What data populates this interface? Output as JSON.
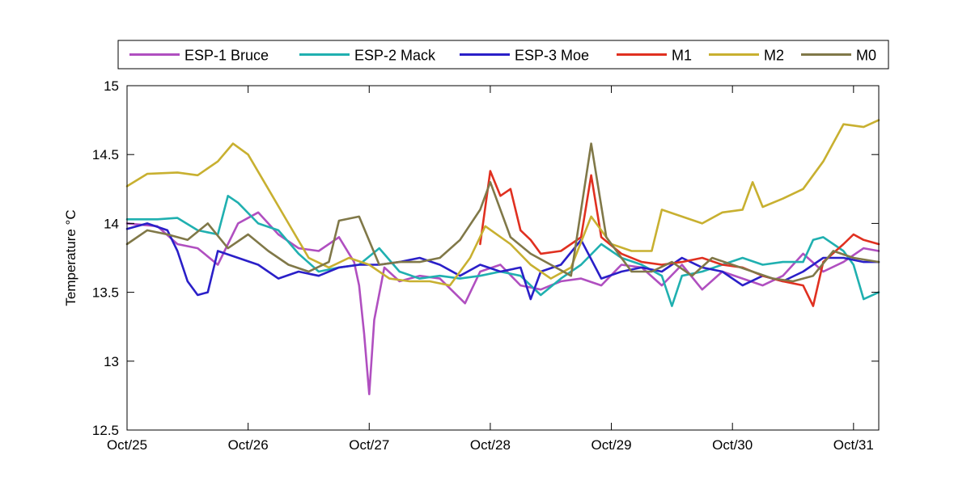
{
  "chart_data": {
    "type": "line",
    "title": "",
    "xlabel": "",
    "ylabel": "Temperature °C",
    "x_ticks": [
      "Oct/25",
      "Oct/26",
      "Oct/27",
      "Oct/28",
      "Oct/29",
      "Oct/30",
      "Oct/31"
    ],
    "xlim": [
      "Oct/25",
      "Oct/31 05:00"
    ],
    "ylim": [
      12.5,
      15
    ],
    "y_ticks": [
      "12.5",
      "13",
      "13.5",
      "14",
      "14.5",
      "15"
    ],
    "grid": false,
    "legend_position": "top",
    "series": [
      {
        "name": "ESP-1 Bruce",
        "color": "#b04fc0",
        "points": [
          [
            "Oct/25 00:00",
            14.0
          ],
          [
            "Oct/25 06:00",
            13.98
          ],
          [
            "Oct/25 10:00",
            13.85
          ],
          [
            "Oct/25 14:00",
            13.82
          ],
          [
            "Oct/25 18:00",
            13.7
          ],
          [
            "Oct/25 22:00",
            14.0
          ],
          [
            "Oct/26 02:00",
            14.08
          ],
          [
            "Oct/26 06:00",
            13.92
          ],
          [
            "Oct/26 10:00",
            13.82
          ],
          [
            "Oct/26 14:00",
            13.8
          ],
          [
            "Oct/26 18:00",
            13.9
          ],
          [
            "Oct/26 21:00",
            13.72
          ],
          [
            "Oct/26 22:00",
            13.55
          ],
          [
            "Oct/26 23:00",
            13.2
          ],
          [
            "Oct/27 00:00",
            12.76
          ],
          [
            "Oct/27 01:00",
            13.3
          ],
          [
            "Oct/27 03:00",
            13.68
          ],
          [
            "Oct/27 06:00",
            13.58
          ],
          [
            "Oct/27 10:00",
            13.62
          ],
          [
            "Oct/27 14:00",
            13.6
          ],
          [
            "Oct/27 19:00",
            13.42
          ],
          [
            "Oct/27 22:00",
            13.65
          ],
          [
            "Oct/28 02:00",
            13.7
          ],
          [
            "Oct/28 06:00",
            13.55
          ],
          [
            "Oct/28 10:00",
            13.52
          ],
          [
            "Oct/28 14:00",
            13.58
          ],
          [
            "Oct/28 18:00",
            13.6
          ],
          [
            "Oct/28 22:00",
            13.55
          ],
          [
            "Oct/29 02:00",
            13.7
          ],
          [
            "Oct/29 06:00",
            13.68
          ],
          [
            "Oct/29 10:00",
            13.55
          ],
          [
            "Oct/29 14:00",
            13.7
          ],
          [
            "Oct/29 18:00",
            13.52
          ],
          [
            "Oct/29 22:00",
            13.65
          ],
          [
            "Oct/30 02:00",
            13.6
          ],
          [
            "Oct/30 06:00",
            13.55
          ],
          [
            "Oct/30 10:00",
            13.62
          ],
          [
            "Oct/30 14:00",
            13.78
          ],
          [
            "Oct/30 18:00",
            13.65
          ],
          [
            "Oct/30 22:00",
            13.72
          ],
          [
            "Oct/31 02:00",
            13.82
          ],
          [
            "Oct/31 05:00",
            13.8
          ]
        ]
      },
      {
        "name": "ESP-2 Mack",
        "color": "#20b0b0",
        "points": [
          [
            "Oct/25 00:00",
            14.03
          ],
          [
            "Oct/25 06:00",
            14.03
          ],
          [
            "Oct/25 10:00",
            14.04
          ],
          [
            "Oct/25 14:00",
            13.95
          ],
          [
            "Oct/25 18:00",
            13.92
          ],
          [
            "Oct/25 20:00",
            14.2
          ],
          [
            "Oct/25 22:00",
            14.15
          ],
          [
            "Oct/26 02:00",
            14.0
          ],
          [
            "Oct/26 06:00",
            13.95
          ],
          [
            "Oct/26 10:00",
            13.78
          ],
          [
            "Oct/26 14:00",
            13.65
          ],
          [
            "Oct/26 18:00",
            13.68
          ],
          [
            "Oct/26 22:00",
            13.7
          ],
          [
            "Oct/27 02:00",
            13.82
          ],
          [
            "Oct/27 06:00",
            13.65
          ],
          [
            "Oct/27 10:00",
            13.6
          ],
          [
            "Oct/27 14:00",
            13.62
          ],
          [
            "Oct/27 18:00",
            13.6
          ],
          [
            "Oct/27 22:00",
            13.62
          ],
          [
            "Oct/28 02:00",
            13.65
          ],
          [
            "Oct/28 06:00",
            13.62
          ],
          [
            "Oct/28 10:00",
            13.48
          ],
          [
            "Oct/28 14:00",
            13.6
          ],
          [
            "Oct/28 18:00",
            13.7
          ],
          [
            "Oct/28 22:00",
            13.85
          ],
          [
            "Oct/29 02:00",
            13.75
          ],
          [
            "Oct/29 06:00",
            13.7
          ],
          [
            "Oct/29 10:00",
            13.62
          ],
          [
            "Oct/29 12:00",
            13.4
          ],
          [
            "Oct/29 14:00",
            13.62
          ],
          [
            "Oct/29 18:00",
            13.65
          ],
          [
            "Oct/29 22:00",
            13.7
          ],
          [
            "Oct/30 02:00",
            13.75
          ],
          [
            "Oct/30 06:00",
            13.7
          ],
          [
            "Oct/30 10:00",
            13.72
          ],
          [
            "Oct/30 14:00",
            13.72
          ],
          [
            "Oct/30 16:00",
            13.88
          ],
          [
            "Oct/30 18:00",
            13.9
          ],
          [
            "Oct/30 22:00",
            13.8
          ],
          [
            "Oct/31 00:00",
            13.7
          ],
          [
            "Oct/31 02:00",
            13.45
          ],
          [
            "Oct/31 05:00",
            13.5
          ]
        ]
      },
      {
        "name": "ESP-3 Moe",
        "color": "#2a1fc8",
        "points": [
          [
            "Oct/25 00:00",
            13.96
          ],
          [
            "Oct/25 04:00",
            14.0
          ],
          [
            "Oct/25 08:00",
            13.95
          ],
          [
            "Oct/25 10:00",
            13.8
          ],
          [
            "Oct/25 12:00",
            13.58
          ],
          [
            "Oct/25 14:00",
            13.48
          ],
          [
            "Oct/25 16:00",
            13.5
          ],
          [
            "Oct/25 18:00",
            13.8
          ],
          [
            "Oct/25 22:00",
            13.75
          ],
          [
            "Oct/26 02:00",
            13.7
          ],
          [
            "Oct/26 06:00",
            13.6
          ],
          [
            "Oct/26 10:00",
            13.65
          ],
          [
            "Oct/26 14:00",
            13.62
          ],
          [
            "Oct/26 18:00",
            13.68
          ],
          [
            "Oct/26 22:00",
            13.7
          ],
          [
            "Oct/27 02:00",
            13.7
          ],
          [
            "Oct/27 06:00",
            13.72
          ],
          [
            "Oct/27 10:00",
            13.75
          ],
          [
            "Oct/27 14:00",
            13.7
          ],
          [
            "Oct/27 18:00",
            13.62
          ],
          [
            "Oct/27 22:00",
            13.7
          ],
          [
            "Oct/28 02:00",
            13.65
          ],
          [
            "Oct/28 06:00",
            13.68
          ],
          [
            "Oct/28 08:00",
            13.45
          ],
          [
            "Oct/28 10:00",
            13.65
          ],
          [
            "Oct/28 14:00",
            13.7
          ],
          [
            "Oct/28 18:00",
            13.88
          ],
          [
            "Oct/28 22:00",
            13.6
          ],
          [
            "Oct/29 02:00",
            13.65
          ],
          [
            "Oct/29 06:00",
            13.68
          ],
          [
            "Oct/29 10:00",
            13.65
          ],
          [
            "Oct/29 14:00",
            13.75
          ],
          [
            "Oct/29 18:00",
            13.68
          ],
          [
            "Oct/29 22:00",
            13.65
          ],
          [
            "Oct/30 02:00",
            13.55
          ],
          [
            "Oct/30 06:00",
            13.62
          ],
          [
            "Oct/30 10:00",
            13.58
          ],
          [
            "Oct/30 14:00",
            13.65
          ],
          [
            "Oct/30 18:00",
            13.75
          ],
          [
            "Oct/30 22:00",
            13.75
          ],
          [
            "Oct/31 02:00",
            13.72
          ],
          [
            "Oct/31 05:00",
            13.72
          ]
        ]
      },
      {
        "name": "M1",
        "color": "#e03020",
        "points": [
          [
            "Oct/27 22:00",
            13.85
          ],
          [
            "Oct/28 00:00",
            14.38
          ],
          [
            "Oct/28 02:00",
            14.2
          ],
          [
            "Oct/28 04:00",
            14.25
          ],
          [
            "Oct/28 06:00",
            13.95
          ],
          [
            "Oct/28 08:00",
            13.88
          ],
          [
            "Oct/28 10:00",
            13.78
          ],
          [
            "Oct/28 14:00",
            13.8
          ],
          [
            "Oct/28 18:00",
            13.9
          ],
          [
            "Oct/28 20:00",
            14.35
          ],
          [
            "Oct/28 22:00",
            13.9
          ],
          [
            "Oct/29 02:00",
            13.78
          ],
          [
            "Oct/29 06:00",
            13.72
          ],
          [
            "Oct/29 10:00",
            13.7
          ],
          [
            "Oct/29 14:00",
            13.72
          ],
          [
            "Oct/29 18:00",
            13.75
          ],
          [
            "Oct/29 22:00",
            13.7
          ],
          [
            "Oct/30 02:00",
            13.68
          ],
          [
            "Oct/30 06:00",
            13.62
          ],
          [
            "Oct/30 10:00",
            13.58
          ],
          [
            "Oct/30 14:00",
            13.55
          ],
          [
            "Oct/30 16:00",
            13.4
          ],
          [
            "Oct/30 18:00",
            13.72
          ],
          [
            "Oct/30 22:00",
            13.85
          ],
          [
            "Oct/31 00:00",
            13.92
          ],
          [
            "Oct/31 02:00",
            13.88
          ],
          [
            "Oct/31 05:00",
            13.85
          ]
        ]
      },
      {
        "name": "M2",
        "color": "#c8b030",
        "points": [
          [
            "Oct/25 00:00",
            14.27
          ],
          [
            "Oct/25 04:00",
            14.36
          ],
          [
            "Oct/25 10:00",
            14.37
          ],
          [
            "Oct/25 14:00",
            14.35
          ],
          [
            "Oct/25 18:00",
            14.45
          ],
          [
            "Oct/25 21:00",
            14.58
          ],
          [
            "Oct/26 00:00",
            14.5
          ],
          [
            "Oct/26 04:00",
            14.25
          ],
          [
            "Oct/26 08:00",
            14.0
          ],
          [
            "Oct/26 12:00",
            13.75
          ],
          [
            "Oct/26 16:00",
            13.68
          ],
          [
            "Oct/26 20:00",
            13.75
          ],
          [
            "Oct/27 00:00",
            13.7
          ],
          [
            "Oct/27 04:00",
            13.6
          ],
          [
            "Oct/27 08:00",
            13.58
          ],
          [
            "Oct/27 12:00",
            13.58
          ],
          [
            "Oct/27 16:00",
            13.55
          ],
          [
            "Oct/27 20:00",
            13.75
          ],
          [
            "Oct/27 23:00",
            13.98
          ],
          [
            "Oct/28 04:00",
            13.85
          ],
          [
            "Oct/28 08:00",
            13.7
          ],
          [
            "Oct/28 12:00",
            13.6
          ],
          [
            "Oct/28 16:00",
            13.68
          ],
          [
            "Oct/28 20:00",
            14.05
          ],
          [
            "Oct/29 00:00",
            13.85
          ],
          [
            "Oct/29 04:00",
            13.8
          ],
          [
            "Oct/29 08:00",
            13.8
          ],
          [
            "Oct/29 10:00",
            14.1
          ],
          [
            "Oct/29 14:00",
            14.05
          ],
          [
            "Oct/29 18:00",
            14.0
          ],
          [
            "Oct/29 22:00",
            14.08
          ],
          [
            "Oct/30 02:00",
            14.1
          ],
          [
            "Oct/30 04:00",
            14.3
          ],
          [
            "Oct/30 06:00",
            14.12
          ],
          [
            "Oct/30 10:00",
            14.18
          ],
          [
            "Oct/30 14:00",
            14.25
          ],
          [
            "Oct/30 18:00",
            14.45
          ],
          [
            "Oct/30 22:00",
            14.72
          ],
          [
            "Oct/31 02:00",
            14.7
          ],
          [
            "Oct/31 05:00",
            14.75
          ]
        ]
      },
      {
        "name": "M0",
        "color": "#807848",
        "points": [
          [
            "Oct/25 00:00",
            13.85
          ],
          [
            "Oct/25 04:00",
            13.95
          ],
          [
            "Oct/25 08:00",
            13.92
          ],
          [
            "Oct/25 12:00",
            13.88
          ],
          [
            "Oct/25 16:00",
            14.0
          ],
          [
            "Oct/25 20:00",
            13.82
          ],
          [
            "Oct/26 00:00",
            13.92
          ],
          [
            "Oct/26 04:00",
            13.8
          ],
          [
            "Oct/26 08:00",
            13.7
          ],
          [
            "Oct/26 12:00",
            13.65
          ],
          [
            "Oct/26 16:00",
            13.72
          ],
          [
            "Oct/26 18:00",
            14.02
          ],
          [
            "Oct/26 22:00",
            14.05
          ],
          [
            "Oct/27 02:00",
            13.7
          ],
          [
            "Oct/27 06:00",
            13.72
          ],
          [
            "Oct/27 10:00",
            13.72
          ],
          [
            "Oct/27 14:00",
            13.75
          ],
          [
            "Oct/27 18:00",
            13.88
          ],
          [
            "Oct/27 22:00",
            14.1
          ],
          [
            "Oct/28 00:00",
            14.3
          ],
          [
            "Oct/28 04:00",
            13.9
          ],
          [
            "Oct/28 08:00",
            13.78
          ],
          [
            "Oct/28 12:00",
            13.7
          ],
          [
            "Oct/28 16:00",
            13.62
          ],
          [
            "Oct/28 20:00",
            14.58
          ],
          [
            "Oct/28 23:00",
            13.9
          ],
          [
            "Oct/29 04:00",
            13.65
          ],
          [
            "Oct/29 08:00",
            13.65
          ],
          [
            "Oct/29 12:00",
            13.72
          ],
          [
            "Oct/29 16:00",
            13.62
          ],
          [
            "Oct/29 20:00",
            13.75
          ],
          [
            "Oct/30 00:00",
            13.7
          ],
          [
            "Oct/30 04:00",
            13.65
          ],
          [
            "Oct/30 08:00",
            13.6
          ],
          [
            "Oct/30 12:00",
            13.58
          ],
          [
            "Oct/30 16:00",
            13.62
          ],
          [
            "Oct/30 20:00",
            13.8
          ],
          [
            "Oct/31 00:00",
            13.75
          ],
          [
            "Oct/31 05:00",
            13.72
          ]
        ]
      }
    ]
  }
}
